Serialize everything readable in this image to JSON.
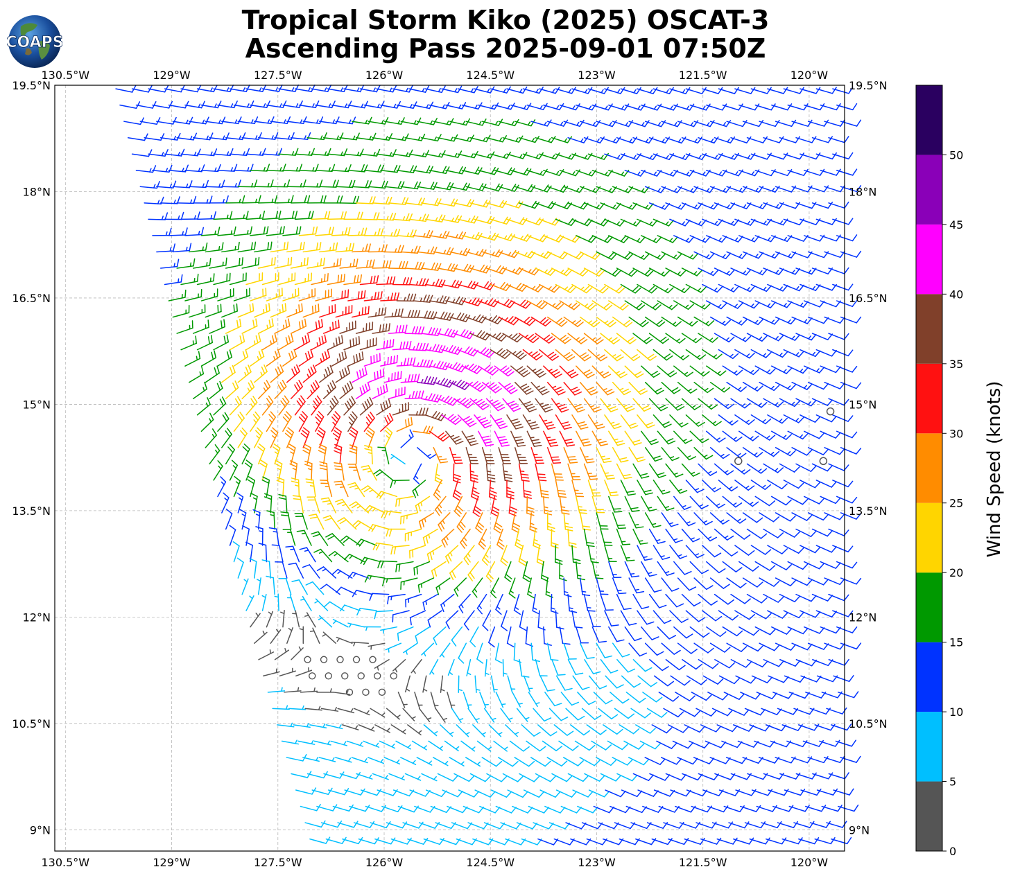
{
  "title_line1": "Tropical Storm Kiko (2025) OSCAT-3",
  "title_line2": "Ascending Pass 2025-09-01 07:50Z",
  "logo_text": "COAPS",
  "colorbar": {
    "label": "Wind Speed (knots)",
    "ticks": [
      "0",
      "5",
      "10",
      "15",
      "20",
      "25",
      "30",
      "35",
      "40",
      "45",
      "50"
    ],
    "bins": [
      {
        "min": 0,
        "max": 5,
        "color": "#555555"
      },
      {
        "min": 5,
        "max": 10,
        "color": "#00bfff"
      },
      {
        "min": 10,
        "max": 15,
        "color": "#0033ff"
      },
      {
        "min": 15,
        "max": 20,
        "color": "#009900"
      },
      {
        "min": 20,
        "max": 25,
        "color": "#ffd500"
      },
      {
        "min": 25,
        "max": 30,
        "color": "#ff8c00"
      },
      {
        "min": 30,
        "max": 35,
        "color": "#ff1111"
      },
      {
        "min": 35,
        "max": 40,
        "color": "#80402a"
      },
      {
        "min": 40,
        "max": 45,
        "color": "#ff00ff"
      },
      {
        "min": 45,
        "max": 50,
        "color": "#8a00b8"
      },
      {
        "min": 50,
        "max": 55,
        "color": "#2a0060"
      }
    ]
  },
  "axes": {
    "lon_labels": [
      "130.5°W",
      "129°W",
      "127.5°W",
      "126°W",
      "124.5°W",
      "123°W",
      "121.5°W",
      "120°W"
    ],
    "lat_labels": [
      "19.5°N",
      "18°N",
      "16.5°N",
      "15°N",
      "13.5°N",
      "12°N",
      "10.5°N",
      "9°N"
    ],
    "lon_values": [
      -130.5,
      -129,
      -127.5,
      -126,
      -124.5,
      -123,
      -121.5,
      -120
    ],
    "lat_values": [
      19.5,
      18,
      16.5,
      15,
      13.5,
      12,
      10.5,
      9
    ],
    "lon_range": [
      -130.65,
      -119.5
    ],
    "lat_range": [
      8.7,
      19.5
    ]
  },
  "map_data": {
    "storm_center": {
      "lon": -125.6,
      "lat": 14.4
    },
    "swath_left_edge": [
      [
        -129.8,
        19.5
      ],
      [
        -127.8,
        11.5
      ],
      [
        -127.0,
        8.7
      ]
    ],
    "calm_points": [
      {
        "lon": -121.0,
        "lat": 14.2
      },
      {
        "lon": -119.8,
        "lat": 14.2
      },
      {
        "lon": -119.7,
        "lat": 14.9
      }
    ]
  }
}
